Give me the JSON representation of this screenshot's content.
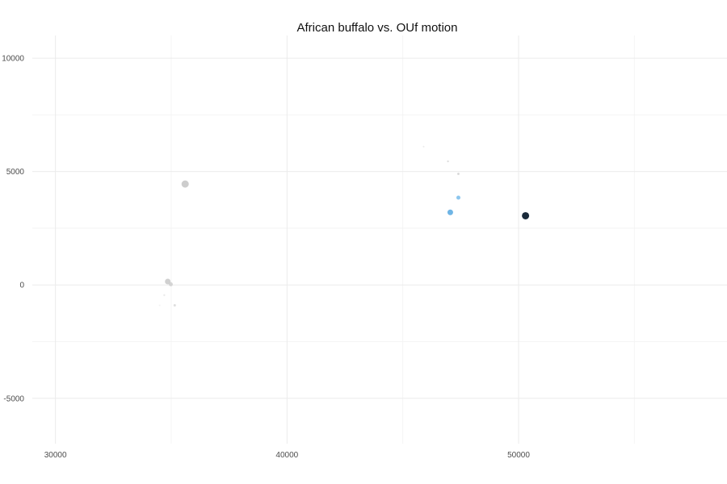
{
  "chart_data": {
    "type": "scatter",
    "title": "African buffalo vs. OUf motion",
    "xlabel": "",
    "ylabel": "",
    "xlim": [
      29000,
      59000
    ],
    "ylim": [
      -7000,
      11000
    ],
    "x_ticks": [
      30000,
      40000,
      50000
    ],
    "y_ticks": [
      -5000,
      0,
      5000,
      10000
    ],
    "grid": true,
    "legend": "none",
    "points": [
      {
        "x": 34500,
        "y": -900,
        "size": 1.0,
        "color": "#e6e6e6",
        "opacity": 0.5
      },
      {
        "x": 34700,
        "y": -450,
        "size": 1.2,
        "color": "#dddddd",
        "opacity": 0.6
      },
      {
        "x": 35150,
        "y": -900,
        "size": 1.5,
        "color": "#d0d0d0",
        "opacity": 0.7
      },
      {
        "x": 34850,
        "y": 150,
        "size": 3.5,
        "color": "#c8c8c8",
        "opacity": 0.85
      },
      {
        "x": 34980,
        "y": 30,
        "size": 2.5,
        "color": "#cccccc",
        "opacity": 0.8
      },
      {
        "x": 35600,
        "y": 4450,
        "size": 4.5,
        "color": "#c8c8c8",
        "opacity": 0.9
      },
      {
        "x": 45900,
        "y": 6100,
        "size": 1.0,
        "color": "#dddddd",
        "opacity": 0.6
      },
      {
        "x": 46950,
        "y": 5450,
        "size": 1.2,
        "color": "#d0d0d0",
        "opacity": 0.7
      },
      {
        "x": 47400,
        "y": 4900,
        "size": 1.4,
        "color": "#c8c8c8",
        "opacity": 0.75
      },
      {
        "x": 47400,
        "y": 3850,
        "size": 2.5,
        "color": "#6fb8ea",
        "opacity": 0.8
      },
      {
        "x": 47050,
        "y": 3200,
        "size": 3.5,
        "color": "#56a8e0",
        "opacity": 0.85
      },
      {
        "x": 50300,
        "y": 3050,
        "size": 4.5,
        "color": "#1a2a3a",
        "opacity": 1.0
      }
    ]
  }
}
